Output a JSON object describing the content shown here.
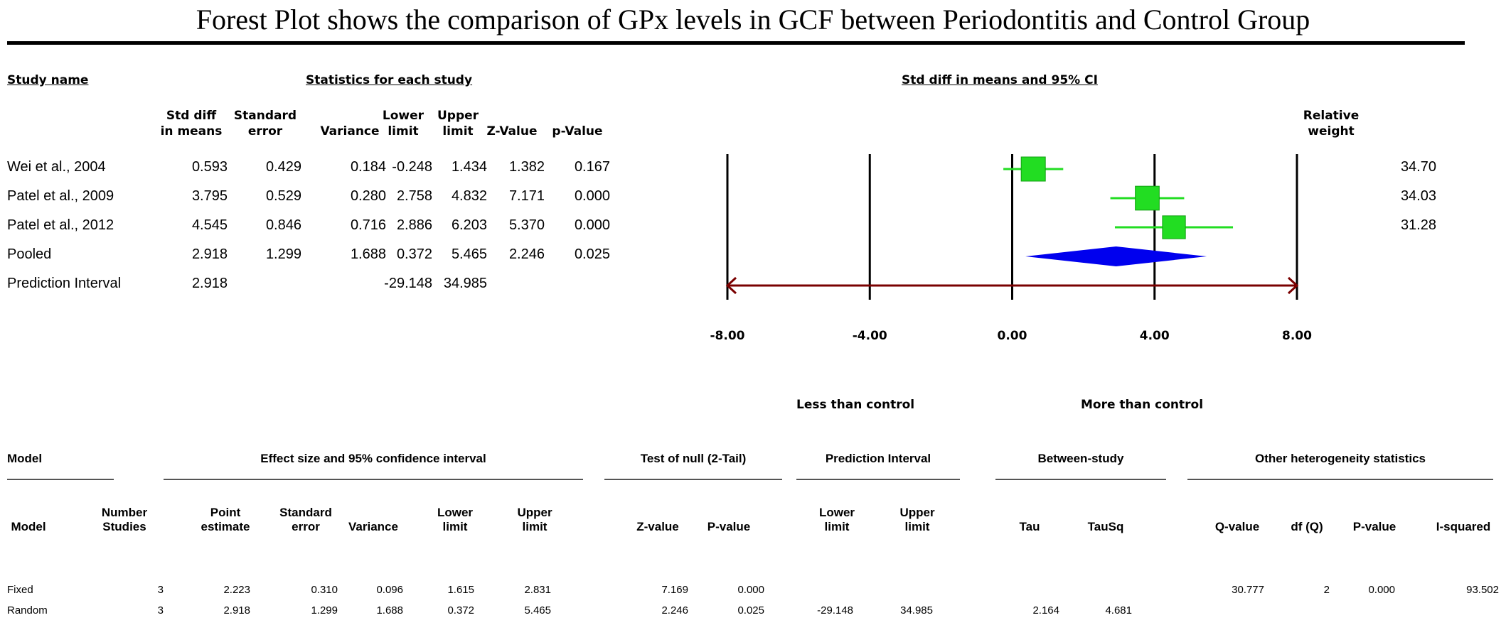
{
  "title": "Forest Plot shows the comparison of GPx levels in GCF between Periodontitis and Control Group",
  "top_headers": {
    "study_name": "Study name",
    "stats": "Statistics for each study",
    "ci": "Std diff in means and 95% CI",
    "relative_weight": [
      "Relative",
      "weight"
    ]
  },
  "columns": [
    [
      "Std diff",
      "in means"
    ],
    [
      "Standard",
      "error"
    ],
    [
      "",
      "Variance"
    ],
    [
      "Lower",
      "limit"
    ],
    [
      "Upper",
      "limit"
    ],
    [
      "",
      "Z-Value"
    ],
    [
      "",
      "p-Value"
    ]
  ],
  "rows": [
    {
      "name": "Wei et al., 2004",
      "vals": [
        "0.593",
        "0.429",
        "0.184",
        "-0.248",
        "1.434",
        "1.382",
        "0.167"
      ],
      "weight": "34.70"
    },
    {
      "name": "Patel et al., 2009",
      "vals": [
        "3.795",
        "0.529",
        "0.280",
        "2.758",
        "4.832",
        "7.171",
        "0.000"
      ],
      "weight": "34.03"
    },
    {
      "name": "Patel et al., 2012",
      "vals": [
        "4.545",
        "0.846",
        "0.716",
        "2.886",
        "6.203",
        "5.370",
        "0.000"
      ],
      "weight": "31.28"
    },
    {
      "name": "Pooled",
      "vals": [
        "2.918",
        "1.299",
        "1.688",
        "0.372",
        "5.465",
        "2.246",
        "0.025"
      ],
      "weight": ""
    },
    {
      "name": "Prediction Interval",
      "vals": [
        "2.918",
        "",
        "",
        "-29.148",
        "34.985",
        "",
        ""
      ],
      "weight": ""
    }
  ],
  "chart_data": {
    "type": "forest",
    "x_ticks": [
      "-8.00",
      "-4.00",
      "0.00",
      "4.00",
      "8.00"
    ],
    "xlim": [
      -8,
      8
    ],
    "left_label": "Less than control",
    "right_label": "More than control",
    "studies": [
      {
        "name": "Wei et al., 2004",
        "estimate": 0.593,
        "lower": -0.248,
        "upper": 1.434,
        "weight": 34.7
      },
      {
        "name": "Patel et al., 2009",
        "estimate": 3.795,
        "lower": 2.758,
        "upper": 4.832,
        "weight": 34.03
      },
      {
        "name": "Patel et al., 2012",
        "estimate": 4.545,
        "lower": 2.886,
        "upper": 6.203,
        "weight": 31.28
      }
    ],
    "pooled": {
      "estimate": 2.918,
      "lower": 0.372,
      "upper": 5.465
    },
    "prediction_interval": {
      "lower": -29.148,
      "upper": 34.985
    },
    "colors": {
      "study": "#22dd22",
      "pooled": "#0000ee",
      "prediction": "#7a0000",
      "axis": "#000000"
    }
  },
  "bottom": {
    "groups": {
      "model": "Model",
      "effect": "Effect size and 95% confidence interval",
      "test_null": "Test of null (2-Tail)",
      "prediction": "Prediction Interval",
      "between": "Between-study",
      "other": "Other heterogeneity statistics"
    },
    "col_headers": [
      [
        "",
        "Model"
      ],
      [
        "Number",
        "Studies"
      ],
      [
        "Point",
        "estimate"
      ],
      [
        "Standard",
        "error"
      ],
      [
        "",
        "Variance"
      ],
      [
        "Lower",
        "limit"
      ],
      [
        "Upper",
        "limit"
      ],
      [
        "",
        "Z-value"
      ],
      [
        "",
        "P-value"
      ],
      [
        "Lower",
        "limit"
      ],
      [
        "Upper",
        "limit"
      ],
      [
        "",
        "Tau"
      ],
      [
        "",
        "TauSq"
      ],
      [
        "",
        "Q-value"
      ],
      [
        "",
        "df (Q)"
      ],
      [
        "",
        "P-value"
      ],
      [
        "",
        "I-squared"
      ]
    ],
    "rows": [
      [
        "Fixed",
        "3",
        "2.223",
        "0.310",
        "0.096",
        "1.615",
        "2.831",
        "7.169",
        "0.000",
        "",
        "",
        "",
        "",
        "30.777",
        "2",
        "0.000",
        "93.502"
      ],
      [
        "Random",
        "3",
        "2.918",
        "1.299",
        "1.688",
        "0.372",
        "5.465",
        "2.246",
        "0.025",
        "-29.148",
        "34.985",
        "2.164",
        "4.681",
        "",
        "",
        "",
        ""
      ]
    ]
  }
}
